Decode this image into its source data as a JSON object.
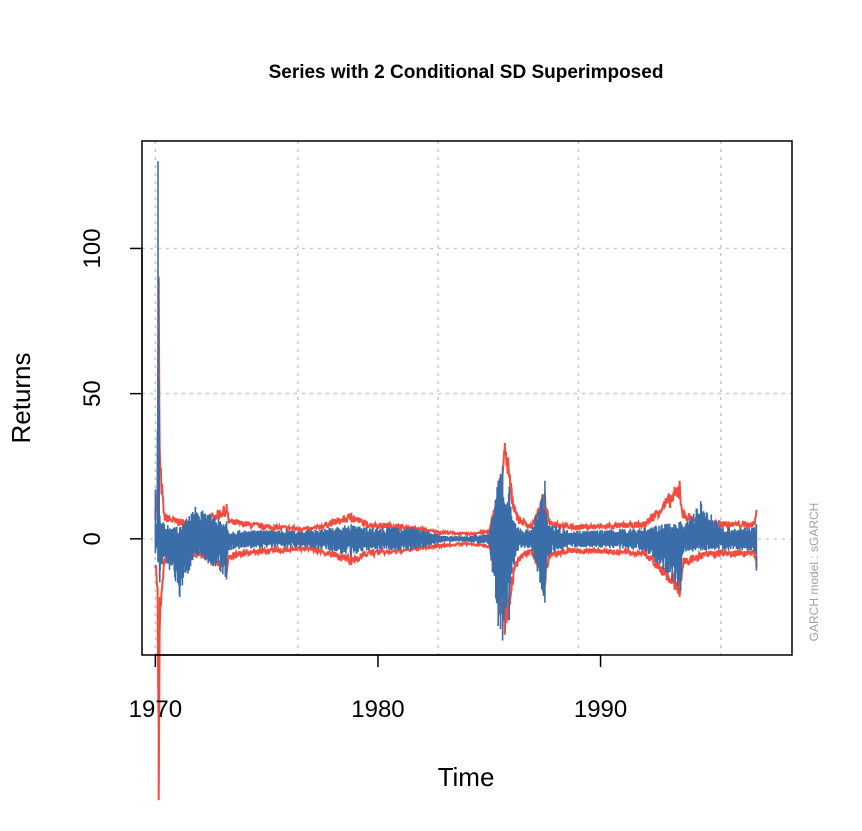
{
  "chart_data": {
    "type": "line",
    "title": "Series with 2 Conditional SD Superimposed",
    "xlabel": "Time",
    "ylabel": "Returns",
    "xlim": [
      1969.4,
      1998.6
    ],
    "ylim": [
      -40,
      137
    ],
    "x_ticks": [
      1970,
      1980,
      1990
    ],
    "y_ticks": [
      0,
      50,
      100
    ],
    "x_tick_labels": [
      "1970",
      "1980",
      "1990"
    ],
    "y_tick_labels": [
      "0",
      "50",
      "100"
    ],
    "grid_x": [
      1970,
      1976.4,
      1982.7,
      1989.0,
      1995.4
    ],
    "grid": true,
    "annotation": "GARCH model :  sGARCH",
    "colors": {
      "returns": "#3b6ea8",
      "sd_band": "#f44b3c",
      "grid": "#c8c8c8",
      "zero_line": "#d0d0d0"
    },
    "series": [
      {
        "style": "returns",
        "x": [
          1970.0,
          1970.08,
          1970.12,
          1970.2,
          1970.4,
          1971.1,
          1971.8,
          1973.2,
          1973.25,
          1975.0,
          1977.0,
          1978.8,
          1979.5,
          1981.5,
          1983.0,
          1984.0,
          1985.0,
          1985.4,
          1985.6,
          1985.8,
          1985.9,
          1986.0,
          1986.3,
          1986.9,
          1987.5,
          1987.6,
          1988.5,
          1990.0,
          1992.0,
          1993.6,
          1993.7,
          1994.5,
          1995.5,
          1996.9,
          1997.0
        ],
        "upper": [
          17,
          3,
          130,
          8,
          5,
          4,
          11,
          6,
          3,
          3,
          3,
          5,
          4,
          4,
          1,
          1,
          2,
          20,
          25,
          12,
          18,
          8,
          4,
          3,
          20,
          6,
          3,
          3,
          4,
          6,
          4,
          13,
          4,
          4,
          5
        ],
        "lower": [
          -5,
          -3,
          -8,
          -15,
          -6,
          -20,
          -5,
          -14,
          -4,
          -3,
          -3,
          -6,
          -4,
          -4,
          -1,
          -1,
          -2,
          -30,
          -35,
          -22,
          -28,
          -12,
          -4,
          -3,
          -22,
          -6,
          -3,
          -3,
          -4,
          -18,
          -5,
          -4,
          -4,
          -4,
          -11
        ]
      },
      {
        "style": "sd_band",
        "x": [
          1970.0,
          1970.1,
          1970.15,
          1970.2,
          1970.4,
          1971.0,
          1972.0,
          1973.2,
          1973.3,
          1975.0,
          1977.0,
          1978.8,
          1979.5,
          1981.0,
          1982.5,
          1984.0,
          1985.0,
          1985.4,
          1985.7,
          1985.85,
          1986.0,
          1986.3,
          1986.9,
          1987.5,
          1987.7,
          1988.5,
          1990.0,
          1992.0,
          1993.55,
          1993.7,
          1994.5,
          1995.5,
          1996.9,
          1997.0
        ],
        "upper": [
          10,
          20,
          90,
          30,
          9,
          7,
          6,
          12,
          7,
          5,
          4,
          9,
          6,
          5,
          3,
          2,
          3,
          18,
          33,
          28,
          18,
          8,
          5,
          16,
          7,
          5,
          5,
          6,
          20,
          10,
          7,
          6,
          6,
          10
        ],
        "lower": [
          -10,
          -20,
          -90,
          -30,
          -9,
          -7,
          -6,
          -12,
          -7,
          -5,
          -4,
          -9,
          -6,
          -5,
          -3,
          -2,
          -3,
          -18,
          -33,
          -28,
          -18,
          -8,
          -5,
          -16,
          -7,
          -5,
          -5,
          -6,
          -20,
          -10,
          -7,
          -6,
          -6,
          -10
        ]
      }
    ]
  }
}
